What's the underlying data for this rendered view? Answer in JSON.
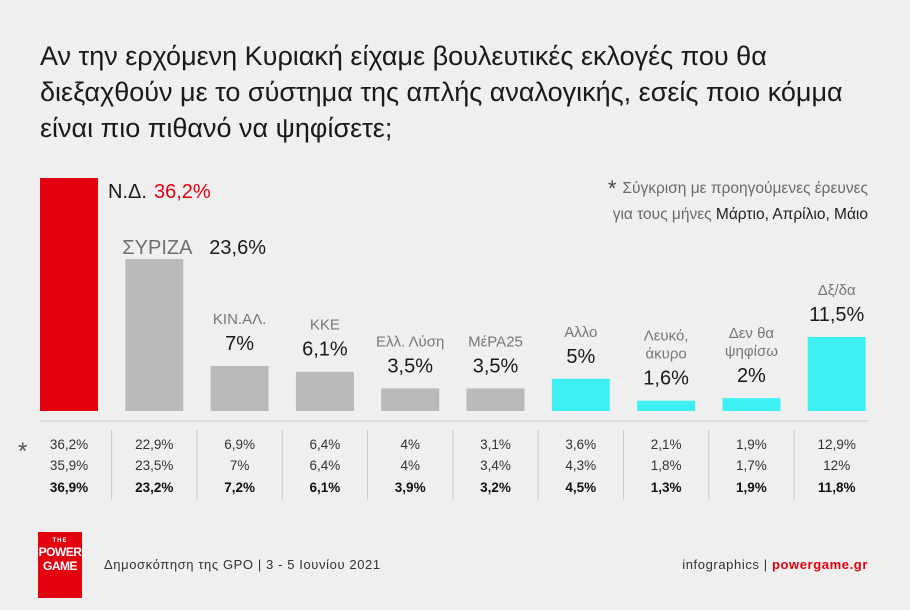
{
  "title": "Αν την ερχόμενη Κυριακή είχαμε βουλευτικές εκλογές που θα διεξαχθούν με το σύστημα της απλής αναλογικής, εσείς ποιο κόμμα είναι πιο πιθανό να ψηφίσετε;",
  "note": {
    "star": "*",
    "line1": "Σύγκριση με προηγούμενες έρευνες",
    "line2_prefix": "για τους μήνες ",
    "line2_months": "Μάρτιο, Απρίλιο, Μάιο"
  },
  "footer": {
    "source": "Δημοσκόπηση της GPO | 3 - 5 Ιουνίου 2021",
    "brand_prefix": "infographics | ",
    "brand_site": "powergame.gr",
    "logo_the": "THE",
    "logo_line1": "POWER",
    "logo_line2": "GAME"
  },
  "colors": {
    "red": "#e3000f",
    "gray": "#b9b9b9",
    "cyan": "#3ff0f3",
    "divider": "#c8c8c8"
  },
  "chart_data": {
    "type": "bar",
    "categories": [
      "Ν.Δ.",
      "ΣΥΡΙΖΑ",
      "ΚΙΝ.ΑΛ.",
      "ΚΚΕ",
      "Ελλ. Λύση",
      "ΜέΡΑ25",
      "Αλλο",
      "Λευκό, άκυρο",
      "Δεν θα ψηφίσω",
      "Δξ/δα"
    ],
    "name_lines": [
      [
        "Ν.Δ."
      ],
      [
        "ΣΥΡΙΖΑ"
      ],
      [
        "ΚΙΝ.ΑΛ."
      ],
      [
        "ΚΚΕ"
      ],
      [
        "Ελλ. Λύση"
      ],
      [
        "ΜέΡΑ25"
      ],
      [
        "Αλλο"
      ],
      [
        "Λευκό,",
        "άκυρο"
      ],
      [
        "Δεν θα",
        "ψηφίσω"
      ],
      [
        "Δξ/δα"
      ]
    ],
    "values": [
      36.2,
      23.6,
      7,
      6.1,
      3.5,
      3.5,
      5,
      1.6,
      2,
      11.5
    ],
    "value_labels": [
      "36,2%",
      "23,6%",
      "7%",
      "6,1%",
      "3,5%",
      "3,5%",
      "5%",
      "1,6%",
      "2%",
      "11,5%"
    ],
    "bar_colors": [
      "red",
      "gray",
      "gray",
      "gray",
      "gray",
      "gray",
      "cyan",
      "cyan",
      "cyan",
      "cyan"
    ],
    "comparison_star": "*",
    "comparison": [
      [
        "36,2%",
        "35,9%",
        "36,9%"
      ],
      [
        "22,9%",
        "23,5%",
        "23,2%"
      ],
      [
        "6,9%",
        "7%",
        "7,2%"
      ],
      [
        "6,4%",
        "6,4%",
        "6,1%"
      ],
      [
        "4%",
        "4%",
        "3,9%"
      ],
      [
        "3,1%",
        "3,4%",
        "3,2%"
      ],
      [
        "3,6%",
        "4,3%",
        "4,5%"
      ],
      [
        "2,1%",
        "1,8%",
        "1,3%"
      ],
      [
        "1,9%",
        "1,7%",
        "1,9%"
      ],
      [
        "12,9%",
        "12%",
        "11,8%"
      ]
    ],
    "ylim": [
      0,
      36.2
    ]
  }
}
